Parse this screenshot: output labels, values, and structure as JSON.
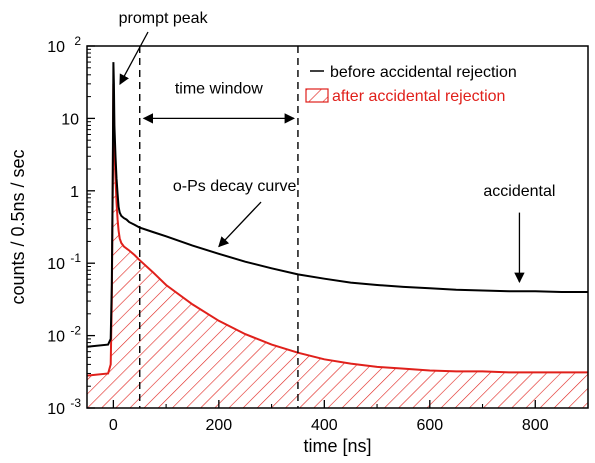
{
  "chart_data": {
    "type": "line",
    "xlabel": "time [ns]",
    "ylabel": "counts / 0.5ns / sec",
    "xscale": "linear",
    "yscale": "log",
    "xlim": [
      -50,
      900
    ],
    "ylim": [
      0.001,
      100
    ],
    "grid": false,
    "legend_position": "top-right",
    "xticks": [
      {
        "value": 0,
        "label": "0"
      },
      {
        "value": 200,
        "label": "200"
      },
      {
        "value": 400,
        "label": "400"
      },
      {
        "value": 600,
        "label": "600"
      },
      {
        "value": 800,
        "label": "800"
      }
    ],
    "yticks": [
      {
        "value": 0.001,
        "base": "10",
        "exp": "-3"
      },
      {
        "value": 0.01,
        "base": "10",
        "exp": "-2"
      },
      {
        "value": 0.1,
        "base": "10",
        "exp": "-1"
      },
      {
        "value": 1,
        "base": "1",
        "exp": ""
      },
      {
        "value": 10,
        "base": "10",
        "exp": ""
      },
      {
        "value": 100,
        "base": "10",
        "exp": "2"
      }
    ],
    "series": [
      {
        "name": "before accidental rejection",
        "color": "#000000",
        "style": "line",
        "x": [
          -50,
          -10,
          -5,
          -3,
          -1,
          0,
          1,
          2,
          4,
          6,
          8,
          10,
          12,
          15,
          20,
          25,
          30,
          40,
          50,
          75,
          100,
          150,
          200,
          250,
          300,
          350,
          400,
          450,
          500,
          550,
          600,
          650,
          700,
          750,
          800,
          850,
          900
        ],
        "y": [
          0.007,
          0.0075,
          0.009,
          0.05,
          2,
          60,
          30,
          8,
          3,
          1.5,
          0.9,
          0.6,
          0.5,
          0.45,
          0.42,
          0.4,
          0.37,
          0.34,
          0.31,
          0.27,
          0.235,
          0.175,
          0.135,
          0.105,
          0.085,
          0.07,
          0.061,
          0.054,
          0.05,
          0.047,
          0.045,
          0.043,
          0.042,
          0.041,
          0.041,
          0.04,
          0.04
        ]
      },
      {
        "name": "after accidental rejection",
        "color": "#e0201b",
        "style": "hatched-area",
        "x": [
          -50,
          -10,
          -5,
          -3,
          -1,
          0,
          1,
          2,
          4,
          6,
          8,
          10,
          12,
          15,
          20,
          30,
          40,
          50,
          75,
          100,
          150,
          200,
          250,
          300,
          350,
          400,
          450,
          500,
          550,
          600,
          650,
          700,
          750,
          800,
          850,
          900
        ],
        "y": [
          0.0028,
          0.003,
          0.004,
          0.03,
          1.5,
          30,
          15,
          4,
          1.5,
          0.7,
          0.4,
          0.28,
          0.22,
          0.19,
          0.17,
          0.15,
          0.13,
          0.11,
          0.075,
          0.05,
          0.027,
          0.016,
          0.0105,
          0.0075,
          0.0058,
          0.0047,
          0.0041,
          0.0037,
          0.0035,
          0.0033,
          0.0032,
          0.0032,
          0.0031,
          0.0031,
          0.0031,
          0.0031
        ]
      }
    ],
    "vertical_lines": [
      {
        "x": 50,
        "style": "dashed"
      },
      {
        "x": 350,
        "style": "dashed"
      }
    ],
    "annotations": [
      {
        "text": "prompt peak",
        "text_at": {
          "x": 10,
          "y": 120
        },
        "arrow_to": {
          "x": 3,
          "y": 28
        }
      },
      {
        "text": "time window",
        "text_at": {
          "x": 200,
          "y": 22
        },
        "arrow": {
          "from": 50,
          "to": 350,
          "y": 10
        }
      },
      {
        "text": "o-Ps decay curve",
        "text_at": {
          "x": 230,
          "y": 1.0
        },
        "arrow_from": {
          "x": 280,
          "y": 0.7
        },
        "arrow_to": {
          "x": 200,
          "y": 0.17
        }
      },
      {
        "text": "accidental",
        "text_at": {
          "x": 770,
          "y": 0.85
        },
        "arrow_from": {
          "x": 770,
          "y": 0.5
        },
        "arrow_to": {
          "x": 770,
          "y": 0.055
        }
      }
    ]
  }
}
